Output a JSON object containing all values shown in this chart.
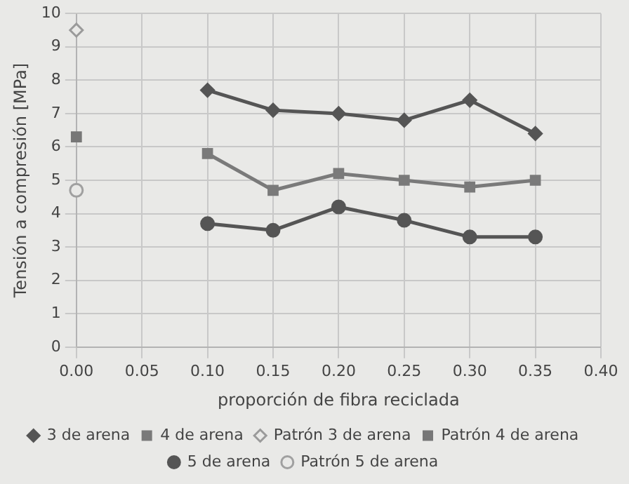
{
  "chart_data": {
    "type": "line",
    "xlabel": "proporción de fibra reciclada",
    "ylabel": "Tensión a compresión [MPa]",
    "xlim": [
      0,
      0.4
    ],
    "xticks": [
      {
        "value": 0,
        "label": "0.00"
      },
      {
        "value": 0.05,
        "label": "0.05"
      },
      {
        "value": 0.1,
        "label": "0.10"
      },
      {
        "value": 0.15,
        "label": "0.15"
      },
      {
        "value": 0.2,
        "label": "0.20"
      },
      {
        "value": 0.25,
        "label": "0.25"
      },
      {
        "value": 0.3,
        "label": "0.30"
      },
      {
        "value": 0.35,
        "label": "0.35"
      },
      {
        "value": 0.4,
        "label": "0.40"
      }
    ],
    "ylim": [
      0,
      10
    ],
    "yticks": [
      0,
      1,
      2,
      3,
      4,
      5,
      6,
      7,
      8,
      9,
      10
    ],
    "grid": true,
    "legend": "bottom",
    "series": [
      {
        "name": "3 de arena",
        "type": "line",
        "marker": "diamond",
        "color": "#555555",
        "x": [
          0.1,
          0.15,
          0.2,
          0.25,
          0.3,
          0.35
        ],
        "values": [
          7.7,
          7.1,
          7.0,
          6.8,
          7.4,
          6.4
        ]
      },
      {
        "name": "4 de arena",
        "type": "line",
        "marker": "square",
        "color": "#7a7a7a",
        "x": [
          0.1,
          0.15,
          0.2,
          0.25,
          0.3,
          0.35
        ],
        "values": [
          5.8,
          4.7,
          5.2,
          5.0,
          4.8,
          5.0
        ]
      },
      {
        "name": "Patrón 3 de arena",
        "type": "scatter",
        "marker": "diamond",
        "color": "#9a9a9a",
        "x": [
          0
        ],
        "values": [
          9.5
        ]
      },
      {
        "name": "Patrón 4 de arena",
        "type": "scatter",
        "marker": "square",
        "color": "#777777",
        "x": [
          0
        ],
        "values": [
          6.3
        ]
      },
      {
        "name": "5 de arena",
        "type": "line",
        "marker": "circle",
        "color": "#555555",
        "x": [
          0.1,
          0.15,
          0.2,
          0.25,
          0.3,
          0.35
        ],
        "values": [
          3.7,
          3.5,
          4.2,
          3.8,
          3.3,
          3.3
        ]
      },
      {
        "name": "Patrón 5 de arena",
        "type": "scatter",
        "marker": "circle",
        "color": "#a0a0a0",
        "x": [
          0
        ],
        "values": [
          4.7
        ]
      }
    ]
  }
}
